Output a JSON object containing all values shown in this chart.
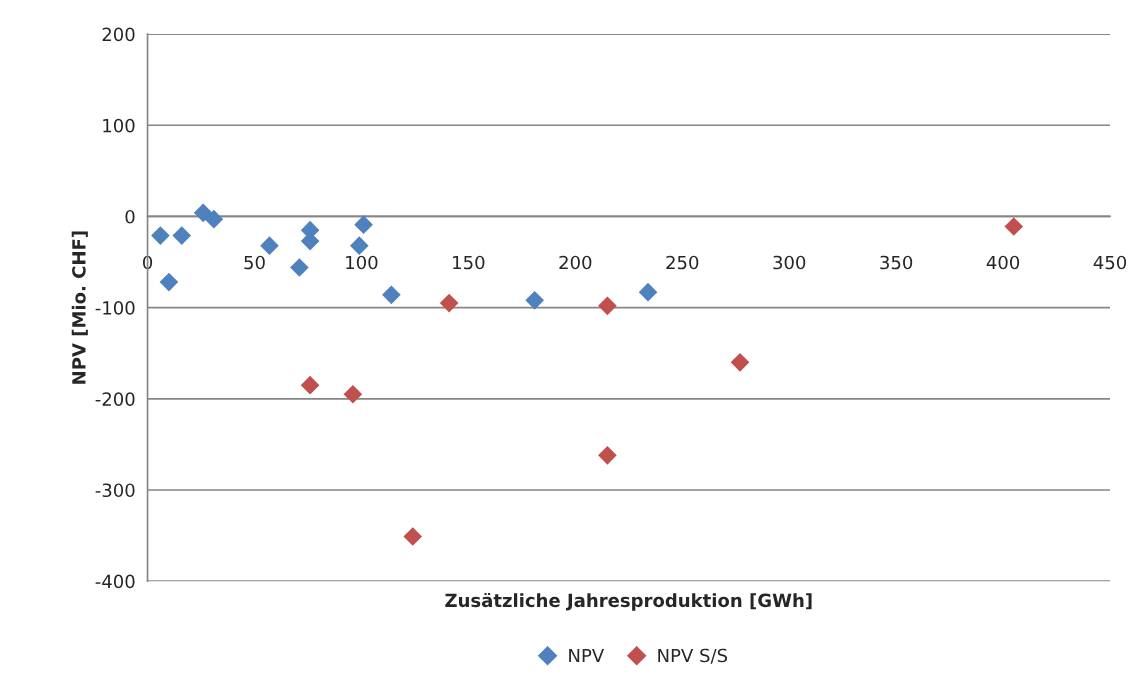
{
  "chart_data": {
    "type": "scatter",
    "xlabel": "Zusätzliche Jahresproduktion [GWh]",
    "ylabel": "NPV [Mio. CHF]",
    "xlim": [
      0,
      450
    ],
    "xticks": [
      0,
      50,
      100,
      150,
      200,
      250,
      300,
      350,
      400,
      450
    ],
    "ylim": [
      -400,
      200
    ],
    "yticks": [
      -400,
      -300,
      -200,
      -100,
      0,
      100,
      200
    ],
    "grid": "y",
    "legend": "bottom",
    "marker": "diamond",
    "series": [
      {
        "name": "NPV",
        "color": "#4f81bd",
        "x": [
          6,
          10,
          16,
          26,
          31,
          57,
          71,
          76,
          76,
          99,
          101,
          114,
          181,
          234
        ],
        "values": [
          -21,
          -72,
          -21,
          4,
          -3,
          -32,
          -56,
          -15,
          -27,
          -32,
          -9,
          -86,
          -92,
          -83
        ]
      },
      {
        "name": "NPV S/S",
        "color": "#c0504d",
        "x": [
          76,
          96,
          141,
          124,
          215,
          215,
          277,
          405
        ],
        "values": [
          -185,
          -195,
          -95,
          -351,
          -98,
          -262,
          -160,
          -11
        ]
      }
    ]
  }
}
